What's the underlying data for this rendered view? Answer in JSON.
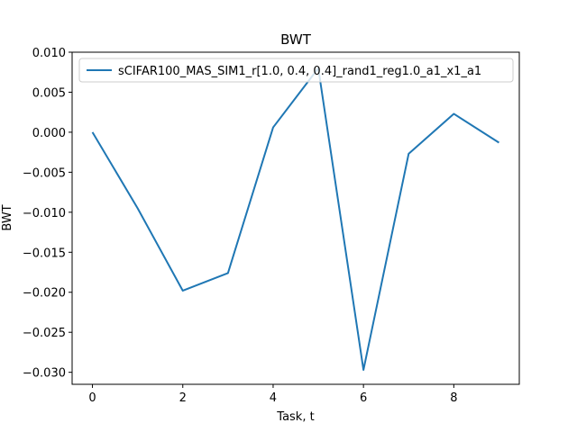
{
  "chart_data": {
    "type": "line",
    "title": "BWT",
    "xlabel": "Task, t",
    "ylabel": "BWT",
    "xlim": [
      -0.45,
      9.45
    ],
    "ylim": [
      -0.0315,
      0.01
    ],
    "xticks": [
      0,
      2,
      4,
      6,
      8
    ],
    "xtick_labels": [
      "0",
      "2",
      "4",
      "6",
      "8"
    ],
    "yticks": [
      0.01,
      0.005,
      0.0,
      -0.005,
      -0.01,
      -0.015,
      -0.02,
      -0.025,
      -0.03
    ],
    "ytick_labels": [
      "0.010",
      "0.005",
      "0.000",
      "−0.005",
      "−0.010",
      "−0.015",
      "−0.020",
      "−0.025",
      "−0.030"
    ],
    "grid": false,
    "legend_position": "top-right",
    "x": [
      0,
      1,
      2,
      3,
      4,
      5,
      6,
      7,
      8,
      9
    ],
    "series": [
      {
        "name": "sCIFAR100_MAS_SIM1_r[1.0, 0.4, 0.4]_rand1_reg1.0_a1_x1_a1",
        "color": "#1f77b4",
        "values": [
          0.0,
          -0.0095,
          -0.0198,
          -0.0176,
          0.0006,
          0.008,
          -0.0297,
          -0.0027,
          0.0023,
          -0.0013
        ]
      }
    ]
  }
}
